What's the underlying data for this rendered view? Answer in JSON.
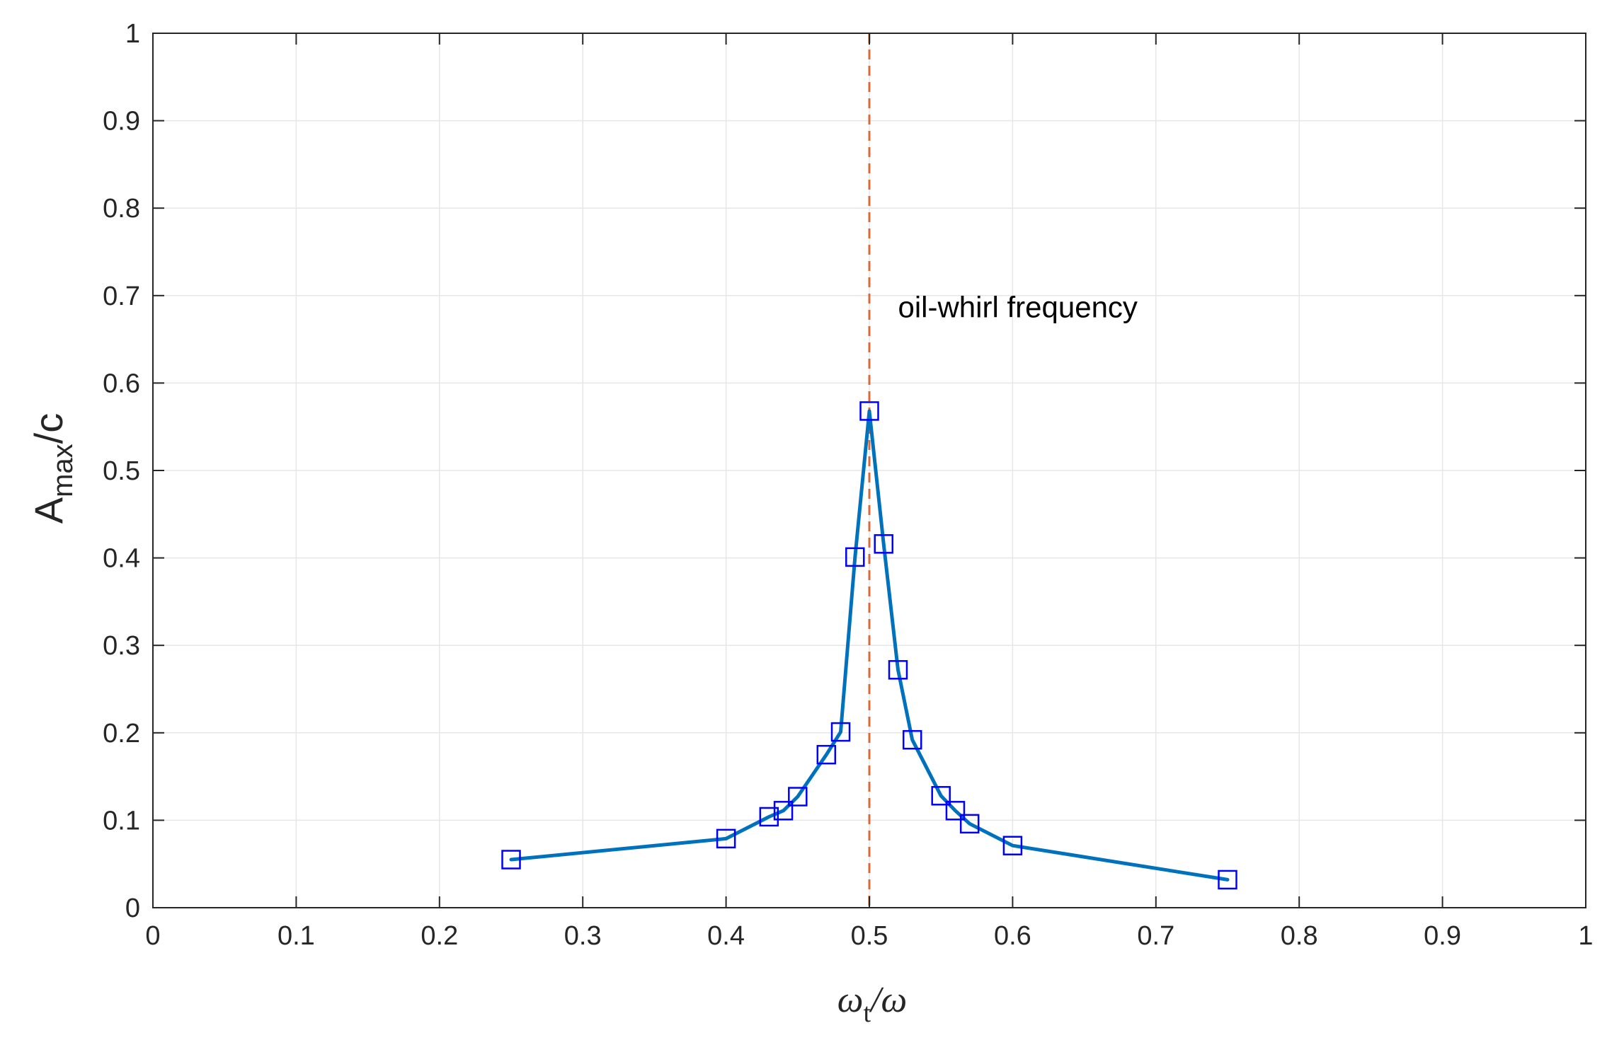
{
  "chart_data": {
    "type": "line",
    "xlim": [
      0,
      1
    ],
    "ylim": [
      0,
      1
    ],
    "grid": true,
    "xticks": [
      0,
      0.1,
      0.2,
      0.3,
      0.4,
      0.5,
      0.6,
      0.7,
      0.8,
      0.9,
      1
    ],
    "yticks": [
      0,
      0.1,
      0.2,
      0.3,
      0.4,
      0.5,
      0.6,
      0.7,
      0.8,
      0.9,
      1
    ],
    "xtick_labels": [
      "0",
      "0.1",
      "0.2",
      "0.3",
      "0.4",
      "0.5",
      "0.6",
      "0.7",
      "0.8",
      "0.9",
      "1"
    ],
    "ytick_labels": [
      "0",
      "0.1",
      "0.2",
      "0.3",
      "0.4",
      "0.5",
      "0.6",
      "0.7",
      "0.8",
      "0.9",
      "1"
    ],
    "xlabel": {
      "main": "ω",
      "sub": "t",
      "tail": "/ω"
    },
    "ylabel": {
      "main": "A",
      "sub": "max",
      "tail": "/c"
    },
    "line_color": "#0072BD",
    "marker_color": "#0000FF",
    "marker": "square",
    "series": [
      {
        "x": [
          0.25,
          0.4,
          0.43,
          0.44,
          0.45,
          0.47,
          0.48,
          0.49,
          0.5,
          0.51,
          0.52,
          0.53,
          0.55,
          0.56,
          0.57,
          0.6,
          0.75
        ],
        "y": [
          0.055,
          0.079,
          0.104,
          0.111,
          0.127,
          0.175,
          0.201,
          0.401,
          0.568,
          0.416,
          0.272,
          0.192,
          0.128,
          0.111,
          0.096,
          0.071,
          0.032
        ]
      }
    ],
    "reference_line": {
      "x": 0.5,
      "color": "#D95319",
      "style": "dashed"
    },
    "annotation": {
      "text": "oil-whirl frequency",
      "x": 0.52,
      "y": 0.675
    }
  }
}
